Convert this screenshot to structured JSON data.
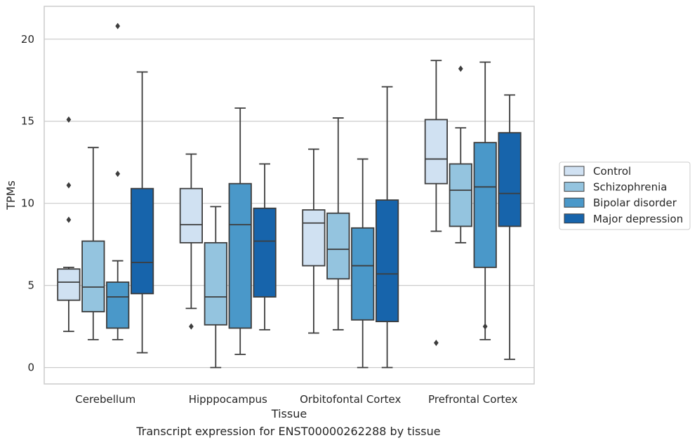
{
  "caption": "Transcript expression for ENST00000262288 by tissue",
  "chart_data": {
    "type": "box",
    "xlabel": "Tissue",
    "ylabel": "TPMs",
    "ylim": [
      -1,
      22
    ],
    "yticks": [
      0,
      5,
      10,
      15,
      20
    ],
    "grid": true,
    "legend_position": "right",
    "categories": [
      "Cerebellum",
      "Hipppocampus",
      "Orbitofontal Cortex",
      "Prefrontal Cortex"
    ],
    "series": [
      {
        "name": "Control",
        "color": "#d0e1f2",
        "boxes": [
          {
            "whislo": 2.2,
            "q1": 4.1,
            "med": 5.2,
            "q3": 6.0,
            "whishi": 6.1,
            "fliers": [
              9.0,
              11.1,
              15.1
            ]
          },
          {
            "whislo": 3.6,
            "q1": 7.6,
            "med": 8.7,
            "q3": 10.9,
            "whishi": 13.0,
            "fliers": [
              2.5
            ]
          },
          {
            "whislo": 2.1,
            "q1": 6.2,
            "med": 8.8,
            "q3": 9.6,
            "whishi": 13.3,
            "fliers": []
          },
          {
            "whislo": 8.3,
            "q1": 11.2,
            "med": 12.7,
            "q3": 15.1,
            "whishi": 18.7,
            "fliers": [
              1.5
            ]
          }
        ]
      },
      {
        "name": "Schizophrenia",
        "color": "#94c4df",
        "boxes": [
          {
            "whislo": 1.7,
            "q1": 3.4,
            "med": 4.9,
            "q3": 7.7,
            "whishi": 13.4,
            "fliers": []
          },
          {
            "whislo": 0.0,
            "q1": 2.6,
            "med": 4.3,
            "q3": 7.6,
            "whishi": 9.8,
            "fliers": []
          },
          {
            "whislo": 2.3,
            "q1": 5.4,
            "med": 7.2,
            "q3": 9.4,
            "whishi": 15.2,
            "fliers": []
          },
          {
            "whislo": 7.6,
            "q1": 8.6,
            "med": 10.8,
            "q3": 12.4,
            "whishi": 14.6,
            "fliers": [
              18.2
            ]
          }
        ]
      },
      {
        "name": "Bipolar disorder",
        "color": "#4a98c9",
        "boxes": [
          {
            "whislo": 1.7,
            "q1": 2.4,
            "med": 4.3,
            "q3": 5.2,
            "whishi": 6.5,
            "fliers": [
              11.8,
              20.8
            ]
          },
          {
            "whislo": 0.8,
            "q1": 2.4,
            "med": 8.7,
            "q3": 11.2,
            "whishi": 15.8,
            "fliers": []
          },
          {
            "whislo": 0.0,
            "q1": 2.9,
            "med": 6.2,
            "q3": 8.5,
            "whishi": 12.7,
            "fliers": []
          },
          {
            "whislo": 1.7,
            "q1": 6.1,
            "med": 11.0,
            "q3": 13.7,
            "whishi": 18.6,
            "fliers": [
              2.5
            ]
          }
        ]
      },
      {
        "name": "Major depression",
        "color": "#1764ab",
        "boxes": [
          {
            "whislo": 0.9,
            "q1": 4.5,
            "med": 6.4,
            "q3": 10.9,
            "whishi": 18.0,
            "fliers": []
          },
          {
            "whislo": 2.3,
            "q1": 4.3,
            "med": 7.7,
            "q3": 9.7,
            "whishi": 12.4,
            "fliers": []
          },
          {
            "whislo": 0.0,
            "q1": 2.8,
            "med": 5.7,
            "q3": 10.2,
            "whishi": 17.1,
            "fliers": []
          },
          {
            "whislo": 0.5,
            "q1": 8.6,
            "med": 10.6,
            "q3": 14.3,
            "whishi": 16.6,
            "fliers": []
          }
        ]
      }
    ]
  }
}
